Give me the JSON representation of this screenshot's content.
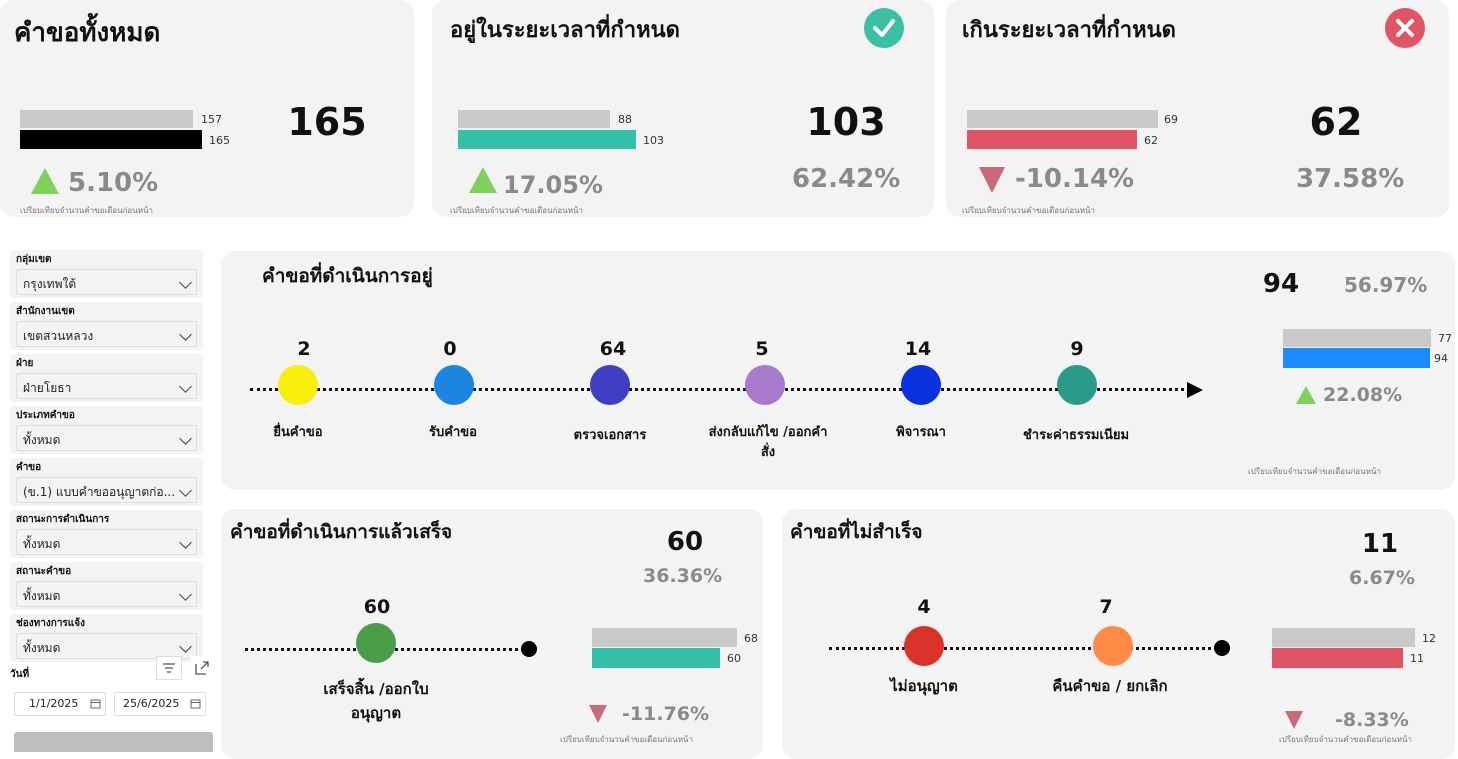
{
  "kpi_total": {
    "title": "คำขอทั้งหมด",
    "prev_value": "157",
    "curr_value": "165",
    "prev_frac": 0.951,
    "big_value": "165",
    "change_pct": "5.10%",
    "compare_note": "เปรียบเทียบจำนวนคำขอเดือนก่อนหน้า"
  },
  "kpi_ontime": {
    "title": "อยู่ในระยะเวลาที่กำหนด",
    "prev_value": "88",
    "curr_value": "103",
    "prev_frac": 0.854,
    "big_value": "103",
    "share_pct": "62.42%",
    "change_pct": "17.05%",
    "compare_note": "เปรียบเทียบจำนวนคำขอเดือนก่อนหน้า",
    "icon": "check-circle-icon",
    "icon_color": "#3cc0a4"
  },
  "kpi_overdue": {
    "title": "เกินระยะเวลาที่กำหนด",
    "prev_value": "69",
    "curr_value": "62",
    "curr_frac": 0.899,
    "big_value": "62",
    "share_pct": "37.58%",
    "change_pct": "-10.14%",
    "compare_note": "เปรียบเทียบจำนวนคำขอเดือนก่อนหน้า",
    "icon": "x-circle-icon",
    "icon_color": "#e05565"
  },
  "filters": [
    {
      "label": "กลุ่มเขต",
      "value": "กรุงเทพใต้"
    },
    {
      "label": "สำนักงานเขต",
      "value": "เขตสวนหลวง"
    },
    {
      "label": "ฝ่าย",
      "value": "ฝ่ายโยธา"
    },
    {
      "label": "ประเภทคำขอ",
      "value": "ทั้งหมด"
    },
    {
      "label": "คำขอ",
      "value": "(ข.1) แบบคำขออนุญาตก่อ..."
    },
    {
      "label": "สถานะการดำเนินการ",
      "value": "ทั้งหมด"
    },
    {
      "label": "สถานะคำขอ",
      "value": "ทั้งหมด"
    },
    {
      "label": "ช่องทางการแจ้ง",
      "value": "ทั้งหมด"
    }
  ],
  "date_filter": {
    "label": "วันที่",
    "start": "1/1/2025",
    "end": "25/6/2025"
  },
  "in_progress": {
    "title": "คำขอที่ดำเนินการอยู่",
    "big_value": "94",
    "share_pct": "56.97%",
    "prev_value": "77",
    "curr_value": "94",
    "prev_frac": 0.819,
    "change_pct": "22.08%",
    "compare_note": "เปรียบเทียบจำนวนคำขอเดือนก่อนหน้า",
    "steps": [
      {
        "count": "2",
        "label": "ยื่นคำขอ",
        "color": "#f7ef0a"
      },
      {
        "count": "0",
        "label": "รับคำขอ",
        "color": "#1a86e0"
      },
      {
        "count": "64",
        "label": "ตรวจเอกสาร",
        "color": "#3f3fc4"
      },
      {
        "count": "5",
        "label": "ส่งกลับแก้ไข /ออกคำสั่ง",
        "color": "#a77acb"
      },
      {
        "count": "14",
        "label": "พิจารณา",
        "color": "#0a33e0"
      },
      {
        "count": "9",
        "label": "ชำระค่าธรรมเนียม",
        "color": "#2a9a8a"
      }
    ]
  },
  "completed": {
    "title": "คำขอที่ดำเนินการแล้วเสร็จ",
    "big_value": "60",
    "share_pct": "36.36%",
    "prev_value": "68",
    "curr_value": "60",
    "curr_frac": 0.882,
    "change_pct": "-11.76%",
    "compare_note": "เปรียบเทียบจำนวนคำขอเดือนก่อนหน้า",
    "step": {
      "count": "60",
      "label": "เสร็จสิ้น /ออกใบอนุญาต",
      "color": "#4a9e4a"
    }
  },
  "failed": {
    "title": "คำขอที่ไม่สำเร็จ",
    "big_value": "11",
    "share_pct": "6.67%",
    "prev_value": "12",
    "curr_value": "11",
    "curr_frac": 0.917,
    "change_pct": "-8.33%",
    "compare_note": "เปรียบเทียบจำนวนคำขอเดือนก่อนหน้า",
    "steps": [
      {
        "count": "4",
        "label": "ไม่อนุญาต",
        "color": "#d9322b"
      },
      {
        "count": "7",
        "label": "คืนคำขอ / ยกเลิก",
        "color": "#ff8a45"
      }
    ]
  },
  "colors": {
    "prev_bar": "#c9c9c9",
    "total_bar": "#000000",
    "ontime_bar": "#35c0a8",
    "overdue_bar": "#e05565",
    "progress_bar": "#1a8cff"
  }
}
